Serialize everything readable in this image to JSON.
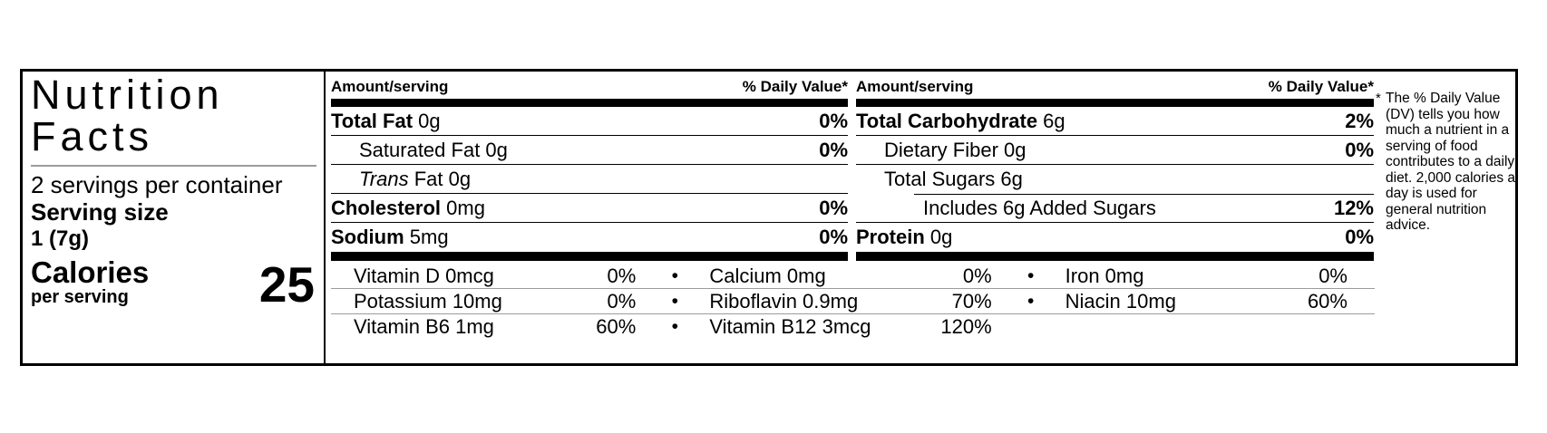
{
  "label": {
    "title_line1": "Nutrition",
    "title_line2": "Facts",
    "servings_per_container": "2 servings per container",
    "serving_size_label": "Serving size",
    "serving_size_value": "1 (7g)",
    "calories_label": "Calories",
    "calories_sublabel": "per serving",
    "calories_value": "25"
  },
  "columns": [
    {
      "header_left": "Amount/serving",
      "header_right": "% Daily Value*",
      "rows": [
        {
          "name": "Total Fat",
          "suffix": " 0g",
          "italic": "",
          "dv": "0%",
          "bold": true,
          "indent": 0,
          "sep_below": "full"
        },
        {
          "name": "Saturated Fat",
          "suffix": " 0g",
          "italic": "",
          "dv": "0%",
          "bold": false,
          "indent": 1,
          "sep_below": "full"
        },
        {
          "name": "",
          "suffix": " Fat 0g",
          "italic": "Trans",
          "dv": "",
          "bold": false,
          "indent": 1,
          "sep_below": "full"
        },
        {
          "name": "Cholesterol",
          "suffix": " 0mg",
          "italic": "",
          "dv": "0%",
          "bold": true,
          "indent": 0,
          "sep_below": "full"
        },
        {
          "name": "Sodium",
          "suffix": " 5mg",
          "italic": "",
          "dv": "0%",
          "bold": true,
          "indent": 0,
          "sep_below": "none"
        }
      ]
    },
    {
      "header_left": "Amount/serving",
      "header_right": "% Daily Value*",
      "rows": [
        {
          "name": "Total Carbohydrate",
          "suffix": " 6g",
          "italic": "",
          "dv": "2%",
          "bold": true,
          "indent": 0,
          "sep_below": "full"
        },
        {
          "name": "Dietary Fiber",
          "suffix": " 0g",
          "italic": "",
          "dv": "0%",
          "bold": false,
          "indent": 1,
          "sep_below": "full"
        },
        {
          "name": "Total Sugars",
          "suffix": " 6g",
          "italic": "",
          "dv": "",
          "bold": false,
          "indent": 1,
          "sep_below": "indent"
        },
        {
          "name": "Includes 6g Added Sugars",
          "suffix": "",
          "italic": "",
          "dv": "12%",
          "bold": false,
          "indent": 2,
          "sep_below": "full"
        },
        {
          "name": "Protein",
          "suffix": " 0g",
          "italic": "",
          "dv": "0%",
          "bold": true,
          "indent": 0,
          "sep_below": "none"
        }
      ]
    }
  ],
  "vitamins": {
    "bullet": "•",
    "rows": [
      [
        {
          "name": "Vitamin D 0mcg",
          "dv": "0%"
        },
        {
          "name": "Calcium 0mg",
          "dv": "0%"
        },
        {
          "name": "Iron 0mg",
          "dv": "0%"
        }
      ],
      [
        {
          "name": "Potassium 10mg",
          "dv": "0%"
        },
        {
          "name": "Riboflavin 0.9mg",
          "dv": "70%"
        },
        {
          "name": "Niacin 10mg",
          "dv": "60%"
        }
      ],
      [
        {
          "name": "Vitamin B6 1mg",
          "dv": "60%"
        },
        {
          "name": "Vitamin B12 3mcg",
          "dv": "120%"
        },
        null
      ]
    ]
  },
  "footnote": {
    "asterisk": "*",
    "text": "The % Daily Value (DV) tells you how much a nutrient in a serving of food contributes to a daily diet. 2,000 calories a day is used for general nutrition advice."
  },
  "colors": {
    "text": "#000000",
    "background": "#ffffff",
    "light_separator": "#9c9c9c"
  }
}
